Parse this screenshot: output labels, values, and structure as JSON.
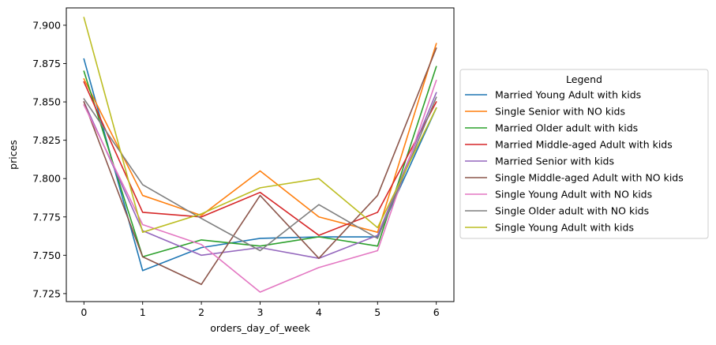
{
  "chart_data": {
    "type": "line",
    "title": "",
    "xlabel": "orders_day_of_week",
    "ylabel": "prices",
    "x": [
      0,
      1,
      2,
      3,
      4,
      5,
      6
    ],
    "xlim": [
      -0.3,
      6.3
    ],
    "ylim": [
      7.7198,
      7.9113
    ],
    "xticks": [
      0,
      1,
      2,
      3,
      4,
      5,
      6
    ],
    "yticks": [
      7.725,
      7.75,
      7.775,
      7.8,
      7.825,
      7.85,
      7.875,
      7.9
    ],
    "ytick_labels": [
      "7.725",
      "7.750",
      "7.775",
      "7.800",
      "7.825",
      "7.850",
      "7.875",
      "7.900"
    ],
    "grid": false,
    "legend": {
      "title": "Legend",
      "placement": "center-right-outside"
    },
    "series": [
      {
        "name": "Married Young Adult with kids",
        "color": "#1f77b4",
        "values": [
          7.878,
          7.74,
          7.755,
          7.761,
          7.762,
          7.762,
          7.846
        ]
      },
      {
        "name": "Single Senior with NO kids",
        "color": "#ff7f0e",
        "values": [
          7.865,
          7.789,
          7.776,
          7.805,
          7.775,
          7.765,
          7.888
        ]
      },
      {
        "name": "Married Older adult with kids",
        "color": "#2ca02c",
        "values": [
          7.87,
          7.749,
          7.76,
          7.756,
          7.762,
          7.756,
          7.873
        ]
      },
      {
        "name": "Married Middle-aged Adult with kids",
        "color": "#d62728",
        "values": [
          7.863,
          7.778,
          7.775,
          7.791,
          7.763,
          7.778,
          7.85
        ]
      },
      {
        "name": "Married Senior with kids",
        "color": "#9467bd",
        "values": [
          7.85,
          7.766,
          7.75,
          7.755,
          7.748,
          7.763,
          7.856
        ]
      },
      {
        "name": "Single Middle-aged Adult with NO kids",
        "color": "#8c564b",
        "values": [
          7.85,
          7.749,
          7.731,
          7.789,
          7.748,
          7.789,
          7.885
        ]
      },
      {
        "name": "Single Young Adult with NO kids",
        "color": "#e377c2",
        "values": [
          7.848,
          7.77,
          7.757,
          7.726,
          7.742,
          7.753,
          7.864
        ]
      },
      {
        "name": "Single Older adult with NO kids",
        "color": "#7f7f7f",
        "values": [
          7.852,
          7.796,
          7.774,
          7.753,
          7.783,
          7.761,
          7.853
        ]
      },
      {
        "name": "Single Young Adult with kids",
        "color": "#bcbd22",
        "values": [
          7.905,
          7.765,
          7.777,
          7.794,
          7.8,
          7.768,
          7.846
        ]
      }
    ]
  }
}
